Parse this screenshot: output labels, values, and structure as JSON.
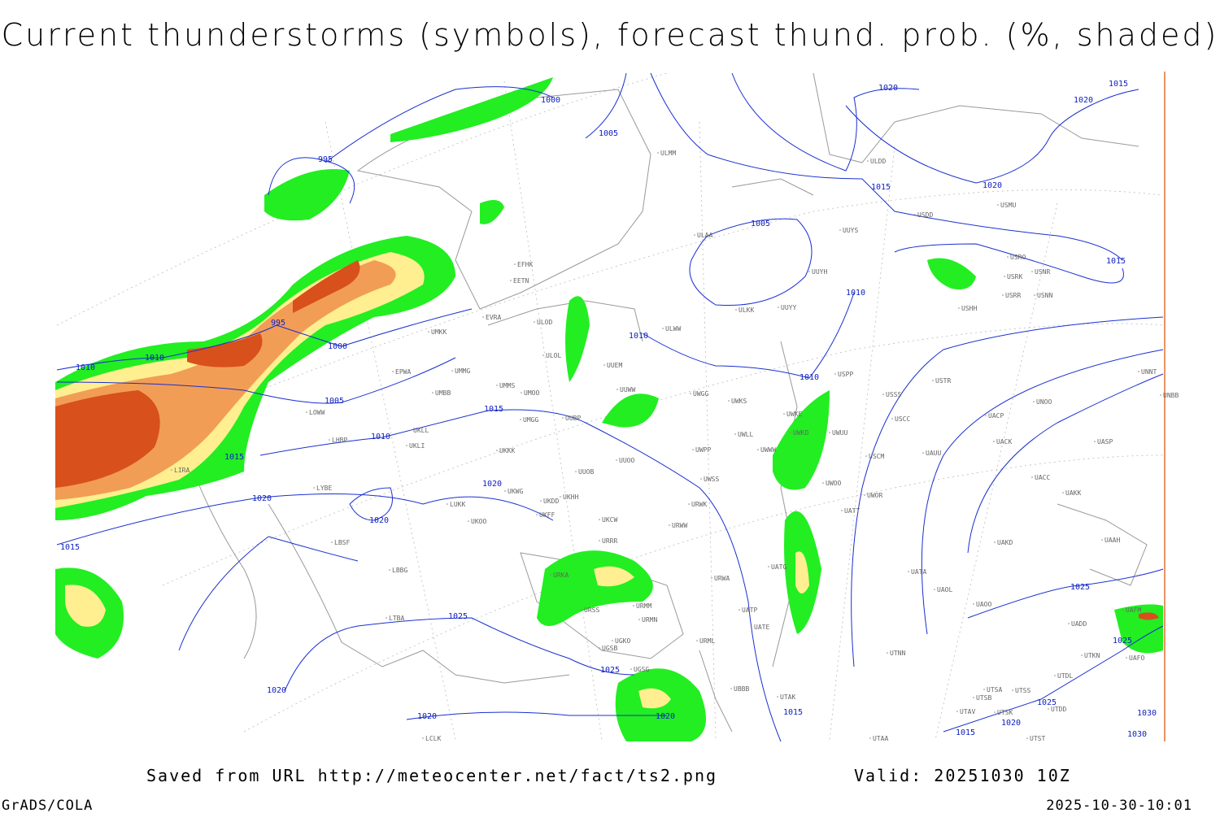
{
  "header": {
    "title": "Current thunderstorms (symbols), forecast thund. prob. (%, shaded)"
  },
  "map": {
    "isobar_labels": [
      1000,
      1005,
      995,
      995,
      1000,
      1010,
      1010,
      1005,
      1010,
      1015,
      1015,
      1010,
      1005,
      1010,
      1010,
      1020,
      1015,
      1020,
      1015,
      1020,
      1015,
      1020,
      1020,
      1020,
      1015,
      1025,
      1025,
      1020,
      1020,
      1020,
      1015,
      1015,
      1020,
      1025,
      1025,
      1025,
      1030,
      1030
    ],
    "stations": [
      "ULDD",
      "USDD",
      "USMU",
      "UUYS",
      "ULAA",
      "UUYH",
      "USRO",
      "USNR",
      "USRK",
      "USRR",
      "USNN",
      "USHH",
      "ULKK",
      "UUYY",
      "ULMM",
      "EFHK",
      "EETN",
      "EVRA",
      "ULOD",
      "UMKK",
      "ULWW",
      "ULOL",
      "UUEM",
      "EPWA",
      "UMMG",
      "UMMS",
      "UMOO",
      "UUWW",
      "UMBB",
      "UWGG",
      "UWKS",
      "USPP",
      "USSS",
      "USTR",
      "UNOO",
      "UNNT",
      "UNBB",
      "UWKE",
      "UWKD",
      "UWUU",
      "USCC",
      "UACP",
      "UMGG",
      "UUBP",
      "UKLL",
      "UKLI",
      "UKKK",
      "UWLL",
      "UWWW",
      "UWPP",
      "USCM",
      "UAUU",
      "UACK",
      "UASP",
      "LOWW",
      "LHBP",
      "LIRA",
      "UUOO",
      "UUOB",
      "UWSS",
      "UWOO",
      "UWOR",
      "UACC",
      "UAKK",
      "LYBE",
      "UKWG",
      "UKDD",
      "UKHH",
      "URWK",
      "UATT",
      "LUKK",
      "UKOO",
      "UKFF",
      "UKCW",
      "URWW",
      "UAKD",
      "UAAH",
      "LBSF",
      "URRR",
      "UATG",
      "LTBA",
      "LBBG",
      "URKA",
      "URWA",
      "UATA",
      "UAOL",
      "UAOO",
      "UAFM",
      "URSS",
      "URMM",
      "UATP",
      "UATE",
      "URMN",
      "UADD",
      "UGKO",
      "URML",
      "UGSB",
      "UTNN",
      "UTKN",
      "UAFO",
      "UTDL",
      "UGSG",
      "UBBB",
      "UTSA",
      "UTSS",
      "UTSB",
      "UTAK",
      "UTAV",
      "UTSK",
      "UTDD",
      "LCLK",
      "UTAA",
      "UTST"
    ]
  },
  "footer": {
    "source": "Saved from URL http://meteocenter.net/fact/ts2.png",
    "valid": "Valid: 20251030 10Z",
    "credit": "GrADS/COLA",
    "timestamp": "2025-10-30-10:01"
  }
}
